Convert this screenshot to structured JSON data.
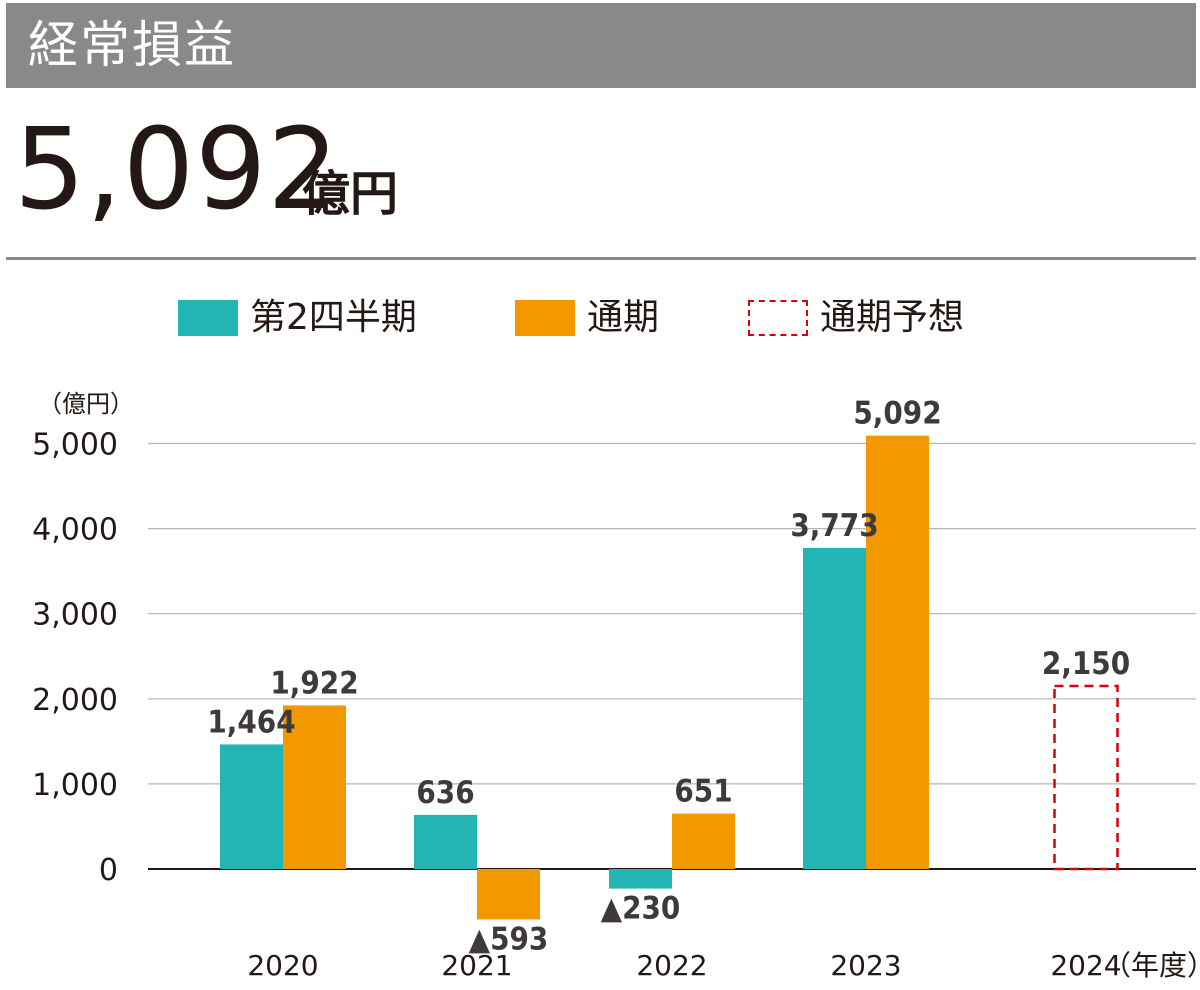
{
  "header": {
    "title": "経常損益"
  },
  "headline": {
    "value": "5,092",
    "unit": "億円"
  },
  "legend": [
    {
      "label": "第2四半期",
      "color": "#23b5b3",
      "style": "solid"
    },
    {
      "label": "通期",
      "color": "#f39800",
      "style": "solid"
    },
    {
      "label": "通期予想",
      "color": "#d7000f",
      "style": "dashed"
    }
  ],
  "chart_data": {
    "type": "bar",
    "unit_label": "（億円）",
    "x_unit_label": "（年度）",
    "categories": [
      "2020",
      "2021",
      "2022",
      "2023",
      "2024"
    ],
    "ylim": [
      -300,
      5300
    ],
    "yticks": [
      0,
      1000,
      2000,
      3000,
      4000,
      5000
    ],
    "ytick_labels": [
      "0",
      "1,000",
      "2,000",
      "3,000",
      "4,000",
      "5,000"
    ],
    "grid": true,
    "series": [
      {
        "name": "第2四半期",
        "color": "#23b5b3",
        "values": [
          1464,
          636,
          -230,
          3773,
          null
        ],
        "labels": [
          "1,464",
          "636",
          "▲230",
          "3,773",
          ""
        ]
      },
      {
        "name": "通期",
        "color": "#f39800",
        "values": [
          1922,
          -593,
          651,
          5092,
          null
        ],
        "labels": [
          "1,922",
          "▲593",
          "651",
          "5,092",
          ""
        ]
      },
      {
        "name": "通期予想",
        "color": "#d7000f",
        "style": "dashed",
        "values": [
          null,
          null,
          null,
          null,
          2150
        ],
        "labels": [
          "",
          "",
          "",
          "",
          "2,150"
        ]
      }
    ]
  }
}
